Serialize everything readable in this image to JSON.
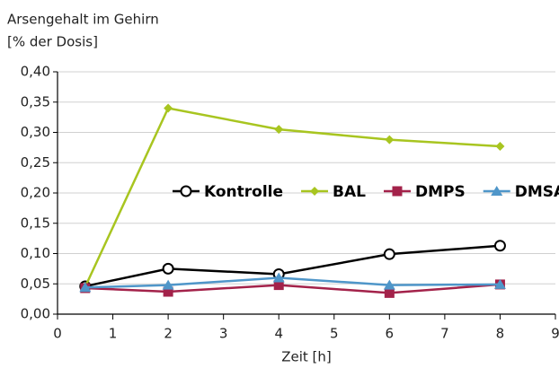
{
  "chart_data": {
    "type": "line",
    "ylabel_lines": [
      "Arsengehalt im Gehirn",
      "[% der Dosis]"
    ],
    "xlabel": "Zeit [h]",
    "x": [
      0.5,
      2,
      4,
      6,
      8
    ],
    "series": [
      {
        "name": "Kontrolle",
        "color": "#000000",
        "marker": "circle",
        "values": [
          0.046,
          0.075,
          0.066,
          0.099,
          0.113
        ]
      },
      {
        "name": "BAL",
        "color": "#a8c520",
        "marker": "diamond",
        "values": [
          0.045,
          0.34,
          0.305,
          0.288,
          0.277
        ]
      },
      {
        "name": "DMPS",
        "color": "#a3224a",
        "marker": "square",
        "values": [
          0.043,
          0.037,
          0.048,
          0.035,
          0.049
        ]
      },
      {
        "name": "DMSA",
        "color": "#4f96c9",
        "marker": "triangle",
        "values": [
          0.044,
          0.048,
          0.06,
          0.048,
          0.049
        ]
      }
    ],
    "xlim": [
      0,
      9
    ],
    "xticks": [
      0,
      1,
      2,
      3,
      4,
      5,
      6,
      7,
      8,
      9
    ],
    "ylim": [
      0,
      0.4
    ],
    "yticks": [
      {
        "value": 0,
        "label": "0,00"
      },
      {
        "value": 0.05,
        "label": "0,05"
      },
      {
        "value": 0.1,
        "label": "0,10"
      },
      {
        "value": 0.15,
        "label": "0,15"
      },
      {
        "value": 0.2,
        "label": "0,20"
      },
      {
        "value": 0.25,
        "label": "0,25"
      },
      {
        "value": 0.3,
        "label": "0,30"
      },
      {
        "value": 0.35,
        "label": "0,35"
      },
      {
        "value": 0.4,
        "label": "0,40"
      }
    ],
    "grid": true,
    "legend": "right"
  }
}
